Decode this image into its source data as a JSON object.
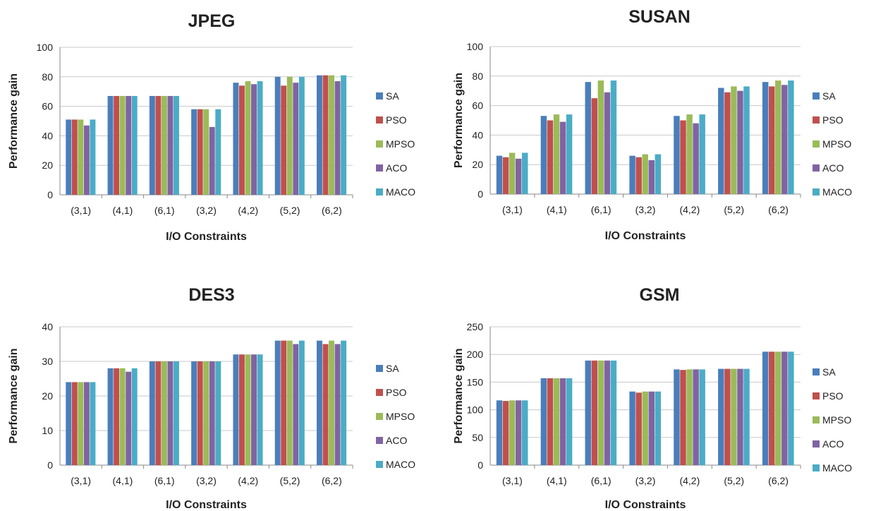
{
  "colors": {
    "SA": "#4a7ebb",
    "PSO": "#c0504d",
    "MPSO": "#9bbb59",
    "ACO": "#8064a2",
    "MACO": "#4bacc6",
    "grid": "#c8c8c8",
    "axis": "#888888"
  },
  "chart_data": [
    {
      "type": "bar",
      "title": "JPEG",
      "xlabel": "I/O Constraints",
      "ylabel": "Performance gain",
      "ylim": [
        0,
        100
      ],
      "yticks": [
        0,
        20,
        40,
        60,
        80,
        100
      ],
      "grid": true,
      "legend": "right",
      "categories": [
        "(3,1)",
        "(4,1)",
        "(6,1)",
        "(3,2)",
        "(4,2)",
        "(5,2)",
        "(6,2)"
      ],
      "series": [
        {
          "name": "SA",
          "values": [
            51,
            67,
            67,
            58,
            76,
            80,
            81
          ]
        },
        {
          "name": "PSO",
          "values": [
            51,
            67,
            67,
            58,
            74,
            74,
            81
          ]
        },
        {
          "name": "MPSO",
          "values": [
            51,
            67,
            67,
            58,
            77,
            80,
            81
          ]
        },
        {
          "name": "ACO",
          "values": [
            47,
            67,
            67,
            46,
            75,
            76,
            77
          ]
        },
        {
          "name": "MACO",
          "values": [
            51,
            67,
            67,
            58,
            77,
            80,
            81
          ]
        }
      ]
    },
    {
      "type": "bar",
      "title": "SUSAN",
      "xlabel": "I/O Constraints",
      "ylabel": "Performance gain",
      "ylim": [
        0,
        100
      ],
      "yticks": [
        0,
        20,
        40,
        60,
        80,
        100
      ],
      "grid": true,
      "legend": "right",
      "categories": [
        "(3,1)",
        "(4,1)",
        "(6,1)",
        "(3,2)",
        "(4,2)",
        "(5,2)",
        "(6,2)"
      ],
      "series": [
        {
          "name": "SA",
          "values": [
            26,
            53,
            76,
            26,
            53,
            72,
            76
          ]
        },
        {
          "name": "PSO",
          "values": [
            25,
            50,
            65,
            25,
            50,
            69,
            73
          ]
        },
        {
          "name": "MPSO",
          "values": [
            28,
            54,
            77,
            27,
            54,
            73,
            77
          ]
        },
        {
          "name": "ACO",
          "values": [
            24,
            49,
            69,
            23,
            48,
            70,
            74
          ]
        },
        {
          "name": "MACO",
          "values": [
            28,
            54,
            77,
            27,
            54,
            73,
            77
          ]
        }
      ]
    },
    {
      "type": "bar",
      "title": "DES3",
      "xlabel": "I/O Constraints",
      "ylabel": "Performance gain",
      "ylim": [
        0,
        40
      ],
      "yticks": [
        0,
        10,
        20,
        30,
        40
      ],
      "grid": true,
      "legend": "right",
      "categories": [
        "(3,1)",
        "(4,1)",
        "(6,1)",
        "(3,2)",
        "(4,2)",
        "(5,2)",
        "(6,2)"
      ],
      "series": [
        {
          "name": "SA",
          "values": [
            24,
            28,
            30,
            30,
            32,
            36,
            36
          ]
        },
        {
          "name": "PSO",
          "values": [
            24,
            28,
            30,
            30,
            32,
            36,
            35
          ]
        },
        {
          "name": "MPSO",
          "values": [
            24,
            28,
            30,
            30,
            32,
            36,
            36
          ]
        },
        {
          "name": "ACO",
          "values": [
            24,
            27,
            30,
            30,
            32,
            35,
            35
          ]
        },
        {
          "name": "MACO",
          "values": [
            24,
            28,
            30,
            30,
            32,
            36,
            36
          ]
        }
      ]
    },
    {
      "type": "bar",
      "title": "GSM",
      "xlabel": "I/O Constraints",
      "ylabel": "Performance gain",
      "ylim": [
        0,
        250
      ],
      "yticks": [
        0,
        50,
        100,
        150,
        200,
        250
      ],
      "grid": true,
      "legend": "right",
      "categories": [
        "(3,1)",
        "(4,1)",
        "(6,1)",
        "(3,2)",
        "(4,2)",
        "(5,2)",
        "(6,2)"
      ],
      "series": [
        {
          "name": "SA",
          "values": [
            117,
            157,
            189,
            133,
            173,
            174,
            205
          ]
        },
        {
          "name": "PSO",
          "values": [
            116,
            157,
            189,
            131,
            172,
            174,
            205
          ]
        },
        {
          "name": "MPSO",
          "values": [
            117,
            157,
            189,
            133,
            173,
            174,
            205
          ]
        },
        {
          "name": "ACO",
          "values": [
            117,
            157,
            189,
            133,
            173,
            174,
            205
          ]
        },
        {
          "name": "MACO",
          "values": [
            117,
            157,
            189,
            133,
            173,
            174,
            205
          ]
        }
      ]
    }
  ]
}
